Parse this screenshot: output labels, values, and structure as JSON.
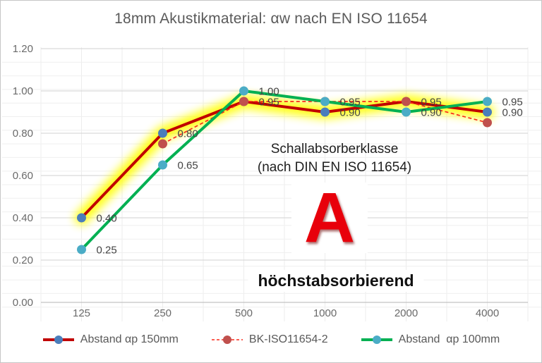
{
  "title": "18mm Akustikmaterial: αw nach EN ISO 11654",
  "chart_data": {
    "type": "line",
    "title": "18mm Akustikmaterial: αw nach EN ISO 11654",
    "categories": [
      "125",
      "250",
      "500",
      "1000",
      "2000",
      "4000"
    ],
    "xlabel": "",
    "ylabel": "",
    "ylim": [
      0,
      1.2
    ],
    "y_ticks": [
      "0.00",
      "0.20",
      "0.40",
      "0.60",
      "0.80",
      "1.00",
      "1.20"
    ],
    "y_axis": {
      "min": 0,
      "max": 1.2,
      "major_step": 0.2
    },
    "grid": true,
    "legend_position": "bottom",
    "glow_color": "#ffff00",
    "series": [
      {
        "name": "Abstand αp 150mm",
        "values": [
          0.4,
          0.8,
          0.95,
          0.9,
          0.95,
          0.9
        ],
        "line_color": "#c00000",
        "marker_color": "#4a7ebb",
        "dashed": false,
        "highlight_glow": true
      },
      {
        "name": "BK-ISO11654-2",
        "values": [
          null,
          0.75,
          0.95,
          0.95,
          0.95,
          0.85
        ],
        "line_color": "#fa2a1a",
        "marker_color": "#c0504d",
        "dashed": true,
        "highlight_glow": false
      },
      {
        "name": "Abstand  αp 100mm",
        "values": [
          0.25,
          0.65,
          1.0,
          0.95,
          0.9,
          0.95
        ],
        "line_color": "#00b052",
        "marker_color": "#4bacc6",
        "dashed": false,
        "highlight_glow": false
      }
    ],
    "point_labels": [
      {
        "series": 0,
        "idx": 0,
        "text": "0.40"
      },
      {
        "series": 2,
        "idx": 0,
        "text": "0.25"
      },
      {
        "series": 0,
        "idx": 1,
        "text": "0.80"
      },
      {
        "series": 2,
        "idx": 1,
        "text": "0.65"
      },
      {
        "series": 2,
        "idx": 2,
        "text": "1.00"
      },
      {
        "series": 1,
        "idx": 2,
        "text": "0.95"
      },
      {
        "series": 2,
        "idx": 3,
        "text": "0.95"
      },
      {
        "series": 0,
        "idx": 3,
        "text": "0.90"
      },
      {
        "series": 1,
        "idx": 4,
        "text": "0.95"
      },
      {
        "series": 2,
        "idx": 4,
        "text": "0.90"
      },
      {
        "series": 2,
        "idx": 5,
        "text": "0.95"
      },
      {
        "series": 0,
        "idx": 5,
        "text": "0.90"
      }
    ]
  },
  "annotation": {
    "heading_line1": "Schallabsorberklasse",
    "heading_line2": "(nach DIN EN ISO 11654)",
    "class_letter": "A",
    "class_letter_color": "#e8000b",
    "description": "höchstabsorbierend"
  }
}
